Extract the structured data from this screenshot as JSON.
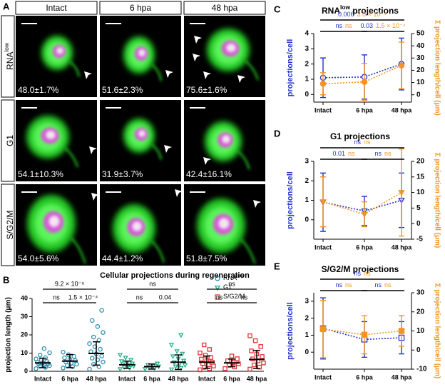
{
  "figure_a": {
    "label": "A",
    "columns": [
      "Intact",
      "6 hpa",
      "48 hpa"
    ],
    "rows": [
      {
        "label": "RNA",
        "label_sup": "low",
        "percentages": [
          "48.0±1.7%",
          "51.6±2.3%",
          "75.6±1.6%"
        ]
      },
      {
        "label": "G1",
        "percentages": [
          "54.1±10.3%",
          "31.9±3.7%",
          "42.4±16.1%"
        ]
      },
      {
        "label": "S/G2/M",
        "percentages": [
          "54.0±5.6%",
          "44.4±1.2%",
          "51.8±7.5%"
        ]
      }
    ]
  },
  "chart_data": [
    {
      "type": "dot",
      "panel_label": "B",
      "title": "Cellular projections during regeneration",
      "y_label": "projection length (μm)",
      "ylim": [
        0,
        40
      ],
      "yticks": [
        0,
        10,
        20,
        30,
        40
      ],
      "series": [
        {
          "name": "RNA",
          "name_sup": "low",
          "color": "#2f8fae",
          "marker": "circle",
          "categories": [
            "Intact",
            "6 hpa",
            "48 hpa"
          ],
          "values": [
            4.6,
            5.6,
            9.8
          ],
          "errors": [
            2.6,
            3.6,
            6.4
          ],
          "points": [
            [
              1.5,
              2.2,
              2.8,
              3.1,
              3.5,
              3.9,
              4.2,
              4.6,
              5.0,
              5.4,
              6.1,
              6.8,
              7.5,
              8.9,
              10.2,
              12.5
            ],
            [
              1.8,
              2.5,
              3.2,
              3.9,
              4.5,
              5.2,
              5.9,
              6.6,
              7.4,
              8.2,
              9.1,
              10.5
            ],
            [
              1.2,
              2.5,
              3.8,
              5.1,
              6.3,
              7.2,
              8.4,
              9.6,
              10.8,
              12.1,
              13.5,
              15.2,
              17.0,
              18.8,
              21.3,
              24.6,
              27.9,
              33.5
            ]
          ]
        },
        {
          "name": "G1",
          "color": "#27b08d",
          "marker": "triangle-down",
          "categories": [
            "Intact",
            "6 hpa",
            "48 hpa"
          ],
          "values": [
            3.6,
            2.6,
            5.0
          ],
          "errors": [
            2.0,
            1.4,
            4.0
          ],
          "points": [
            [
              1.2,
              1.8,
              2.3,
              2.9,
              3.3,
              3.8,
              4.2,
              4.8,
              5.5,
              6.3,
              7.4,
              9.0
            ],
            [
              1.3,
              1.8,
              2.2,
              2.6,
              3.0,
              3.5,
              4.2
            ],
            [
              1.0,
              1.8,
              2.6,
              3.4,
              4.1,
              4.9,
              5.8,
              6.9,
              8.2,
              9.6,
              11.0,
              14.5,
              19.8
            ]
          ]
        },
        {
          "name": "S/G2/M",
          "color": "#e8333a",
          "marker": "square",
          "categories": [
            "Intact",
            "6 hpa",
            "48 hpa"
          ],
          "values": [
            5.0,
            4.6,
            6.5
          ],
          "errors": [
            3.4,
            2.1,
            5.0
          ],
          "points": [
            [
              0.8,
              1.5,
              2.2,
              2.9,
              3.6,
              4.3,
              5.0,
              5.8,
              6.7,
              7.6,
              8.8,
              10.1,
              12.0,
              14.5
            ],
            [
              1.5,
              2.4,
              3.3,
              4.1,
              4.9,
              5.8,
              6.9,
              8.4
            ],
            [
              1.2,
              2.3,
              3.5,
              4.6,
              5.7,
              6.8,
              8.1,
              9.5,
              11.2,
              13.6,
              16.8,
              19.5
            ]
          ]
        }
      ],
      "brackets": [
        {
          "series": 0,
          "from": 0,
          "to": 1,
          "label": "ns"
        },
        {
          "series": 0,
          "from": 1,
          "to": 2,
          "label": "1.5 × 10⁻⁴"
        },
        {
          "series": 0,
          "from": 0,
          "to": 2,
          "label": "9.2 × 10⁻⁸"
        },
        {
          "series": 1,
          "from": 0,
          "to": 1,
          "label": "ns"
        },
        {
          "series": 1,
          "from": 1,
          "to": 2,
          "label": "0.04"
        },
        {
          "series": 1,
          "from": 0,
          "to": 2,
          "label": "ns"
        },
        {
          "series": 2,
          "from": 0,
          "to": 1,
          "label": "ns"
        },
        {
          "series": 2,
          "from": 1,
          "to": 2,
          "label": "ns"
        },
        {
          "series": 2,
          "from": 0,
          "to": 2,
          "label": "ns"
        }
      ]
    },
    {
      "type": "dual-line",
      "panel_label": "C",
      "title": "RNA",
      "title_sup": "low",
      "title_after": " projections",
      "categories": [
        "Intact",
        "6 hpa",
        "48 hpa"
      ],
      "marker": "circle",
      "y_label": "projections/cell",
      "y2_label": "Σ projection length/cell (μm)",
      "ylim": [
        -0.5,
        4
      ],
      "yticks": [
        0,
        1,
        2,
        3,
        4
      ],
      "y2lim": [
        -6,
        50
      ],
      "y2ticks": [
        0,
        10,
        20,
        30,
        40,
        50
      ],
      "series": [
        {
          "color": "#2433c8",
          "filled": false,
          "values": [
            1.1,
            1.15,
            2.0
          ],
          "errors": [
            1.3,
            1.45,
            1.7
          ]
        },
        {
          "color": "#f39422",
          "filled": true,
          "axis": "y2",
          "values": [
            9,
            10.5,
            24
          ],
          "errors": [
            9,
            15,
            19
          ]
        }
      ],
      "brackets": [
        {
          "from": 0,
          "to": 1,
          "labels": [
            "ns",
            "ns"
          ]
        },
        {
          "from": 1,
          "to": 2,
          "labels": [
            "0.03",
            "1.5 × 10⁻⁴"
          ]
        },
        {
          "from": 0,
          "to": 2,
          "labels": [
            "0.006",
            "3.0 × 10⁻⁴"
          ]
        }
      ]
    },
    {
      "type": "dual-line",
      "panel_label": "D",
      "title": "G1 projections",
      "categories": [
        "Intact",
        "6 hpa",
        "48 hpa"
      ],
      "marker": "triangle-down",
      "y_label": "projections/cell",
      "y2_label": "Σ projection length/cell (μm)",
      "ylim": [
        -1,
        3
      ],
      "yticks": [
        0,
        1,
        2,
        3
      ],
      "y2lim": [
        -5,
        20
      ],
      "y2ticks": [
        -5,
        0,
        5,
        10,
        15,
        20
      ],
      "series": [
        {
          "color": "#2433c8",
          "filled": false,
          "values": [
            0.9,
            0.45,
            1.0
          ],
          "errors": [
            1.5,
            0.75,
            1.4
          ]
        },
        {
          "color": "#f39422",
          "filled": true,
          "axis": "y2",
          "values": [
            7,
            3,
            10
          ],
          "errors": [
            8,
            4,
            14
          ]
        }
      ],
      "brackets": [
        {
          "from": 0,
          "to": 1,
          "labels": [
            "0.01",
            "ns"
          ]
        },
        {
          "from": 1,
          "to": 2,
          "labels": [
            "ns",
            "ns"
          ]
        },
        {
          "from": 0,
          "to": 2,
          "labels": [
            "ns",
            "ns"
          ]
        }
      ]
    },
    {
      "type": "dual-line",
      "panel_label": "E",
      "title": "S/G2/M projections",
      "categories": [
        "Intact",
        "6 hpa",
        "48 hpa"
      ],
      "marker": "square",
      "y_label": "projections/cell",
      "y2_label": "Σ projection length/cell (μm)",
      "ylim": [
        -1,
        3.5
      ],
      "yticks": [
        0,
        1,
        2,
        3
      ],
      "y2lim": [
        -10,
        30
      ],
      "y2ticks": [
        -10,
        0,
        10,
        20,
        30
      ],
      "series": [
        {
          "color": "#2433c8",
          "filled": false,
          "values": [
            1.4,
            0.75,
            0.85
          ],
          "errors": [
            1.8,
            1.05,
            0.95
          ]
        },
        {
          "color": "#f39422",
          "filled": true,
          "axis": "y2",
          "values": [
            11,
            8,
            10
          ],
          "errors": [
            15,
            10,
            8
          ]
        }
      ],
      "brackets": [
        {
          "from": 0,
          "to": 1,
          "labels": [
            "ns",
            "ns"
          ]
        },
        {
          "from": 1,
          "to": 2,
          "labels": [
            "ns",
            "ns"
          ]
        },
        {
          "from": 0,
          "to": 2,
          "labels": [
            "ns",
            "ns"
          ]
        }
      ]
    }
  ]
}
